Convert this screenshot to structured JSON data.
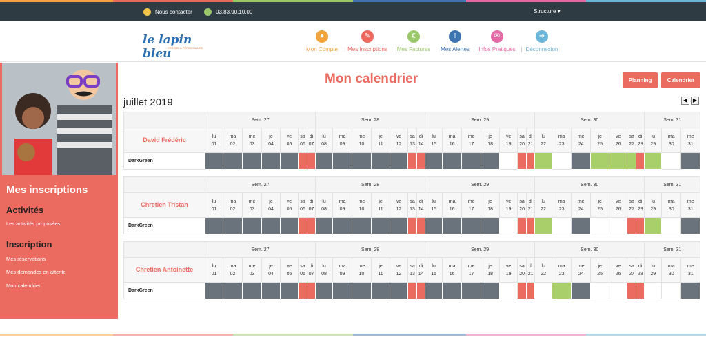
{
  "topbar": {
    "contact_label": "Nous contacter",
    "phone": "03.83.90.10.00",
    "structure_label": "Structure ▾"
  },
  "logo": {
    "text": "le lapin bleu",
    "tagline": "CRÈCHE & PÉRISCOLAIRE"
  },
  "nav": [
    {
      "label": "Mon Compte",
      "icon": "user-icon",
      "color": "#f1a33d"
    },
    {
      "label": "Mes Inscriptions",
      "icon": "pencil-icon",
      "color": "#ea6a5e"
    },
    {
      "label": "Mes Factures",
      "icon": "euro-icon",
      "color": "#9bc86a"
    },
    {
      "label": "Mes Alertes",
      "icon": "warning-icon",
      "color": "#3f74b3"
    },
    {
      "label": "Infos Pratiques",
      "icon": "speech-bubble-icon",
      "color": "#e46aa6"
    },
    {
      "label": "Déconnexion",
      "icon": "logout-icon",
      "color": "#6bb5d8"
    }
  ],
  "sidebar": {
    "title": "Mes inscriptions",
    "section1": "Activités",
    "link1": "Les activités proposées",
    "section2": "Inscription",
    "link2": "Mes réservations",
    "link3": "Mes demandes en attente",
    "link4": "Mon calendrier"
  },
  "page": {
    "title": "Mon calendrier",
    "planning_button": "Planning",
    "calendar_button": "Calendrier",
    "month": "juillet 2019",
    "prev": "◀",
    "next": "▶"
  },
  "calendar": {
    "weeks": [
      {
        "label": "Sem. 27",
        "span": 7
      },
      {
        "label": "Sem. 28",
        "span": 7
      },
      {
        "label": "Sem. 29",
        "span": 7
      },
      {
        "label": "Sem. 30",
        "span": 7
      },
      {
        "label": "Sem. 31",
        "span": 3
      }
    ],
    "days": [
      [
        "lu",
        "01"
      ],
      [
        "ma",
        "02"
      ],
      [
        "me",
        "03"
      ],
      [
        "je",
        "04"
      ],
      [
        "ve",
        "05"
      ],
      [
        "sa",
        "06"
      ],
      [
        "di",
        "07"
      ],
      [
        "lu",
        "08"
      ],
      [
        "ma",
        "09"
      ],
      [
        "me",
        "10"
      ],
      [
        "je",
        "11"
      ],
      [
        "ve",
        "12"
      ],
      [
        "sa",
        "13"
      ],
      [
        "di",
        "14"
      ],
      [
        "lu",
        "15"
      ],
      [
        "ma",
        "16"
      ],
      [
        "me",
        "17"
      ],
      [
        "je",
        "18"
      ],
      [
        "ve",
        "19"
      ],
      [
        "sa",
        "20"
      ],
      [
        "di",
        "21"
      ],
      [
        "lu",
        "22"
      ],
      [
        "ma",
        "23"
      ],
      [
        "me",
        "24"
      ],
      [
        "je",
        "25"
      ],
      [
        "ve",
        "26"
      ],
      [
        "sa",
        "27"
      ],
      [
        "di",
        "28"
      ],
      [
        "lu",
        "29"
      ],
      [
        "ma",
        "30"
      ],
      [
        "me",
        "31"
      ]
    ],
    "children": [
      {
        "name": "David Frédéric",
        "activity": "DarkGreen",
        "cells": "gggggrrgggggrrggggwrrlwglllrlwg"
      },
      {
        "name": "Chretien Tristan",
        "activity": "DarkGreen",
        "cells": "gggggrrgggggrrggggwrrlwgwwrrlwg"
      },
      {
        "name": "Chretien Antoinette",
        "activity": "DarkGreen",
        "cells": "gggggrrgggggrrggggwrrwlgwwrrwwg"
      }
    ]
  }
}
